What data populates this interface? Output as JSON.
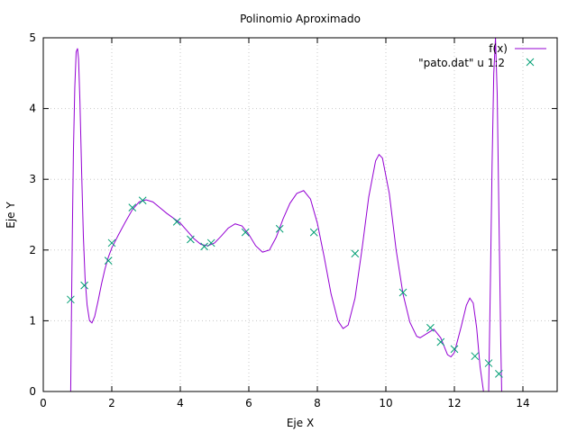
{
  "chart_data": {
    "type": "line",
    "title": "Polinomio Aproximado",
    "xlabel": "Eje X",
    "ylabel": "Eje Y",
    "xlim": [
      0,
      15
    ],
    "ylim": [
      0,
      5
    ],
    "xticks": [
      0,
      2,
      4,
      6,
      8,
      10,
      12,
      14
    ],
    "yticks": [
      0,
      1,
      2,
      3,
      4,
      5
    ],
    "grid": true,
    "legend_position": "top-right",
    "series": [
      {
        "name": "f(x)",
        "kind": "line",
        "color": "#9400d3",
        "points": [
          [
            0.8,
            0.0
          ],
          [
            0.82,
            1.0
          ],
          [
            0.85,
            2.3
          ],
          [
            0.88,
            3.4
          ],
          [
            0.92,
            4.3
          ],
          [
            0.96,
            4.8
          ],
          [
            1.0,
            4.85
          ],
          [
            1.03,
            4.7
          ],
          [
            1.07,
            4.1
          ],
          [
            1.12,
            3.1
          ],
          [
            1.17,
            2.2
          ],
          [
            1.22,
            1.6
          ],
          [
            1.28,
            1.22
          ],
          [
            1.35,
            1.0
          ],
          [
            1.42,
            0.97
          ],
          [
            1.5,
            1.06
          ],
          [
            1.6,
            1.28
          ],
          [
            1.7,
            1.52
          ],
          [
            1.8,
            1.73
          ],
          [
            1.9,
            1.9
          ],
          [
            2.0,
            2.03
          ],
          [
            2.2,
            2.22
          ],
          [
            2.4,
            2.4
          ],
          [
            2.6,
            2.57
          ],
          [
            2.8,
            2.68
          ],
          [
            3.0,
            2.71
          ],
          [
            3.2,
            2.68
          ],
          [
            3.4,
            2.6
          ],
          [
            3.6,
            2.52
          ],
          [
            3.8,
            2.45
          ],
          [
            4.0,
            2.38
          ],
          [
            4.2,
            2.27
          ],
          [
            4.4,
            2.16
          ],
          [
            4.6,
            2.08
          ],
          [
            4.8,
            2.06
          ],
          [
            5.0,
            2.1
          ],
          [
            5.2,
            2.2
          ],
          [
            5.4,
            2.31
          ],
          [
            5.6,
            2.37
          ],
          [
            5.8,
            2.34
          ],
          [
            6.0,
            2.22
          ],
          [
            6.2,
            2.06
          ],
          [
            6.4,
            1.97
          ],
          [
            6.6,
            2.0
          ],
          [
            6.8,
            2.18
          ],
          [
            7.0,
            2.44
          ],
          [
            7.2,
            2.66
          ],
          [
            7.4,
            2.8
          ],
          [
            7.6,
            2.84
          ],
          [
            7.8,
            2.72
          ],
          [
            8.0,
            2.38
          ],
          [
            8.2,
            1.9
          ],
          [
            8.4,
            1.38
          ],
          [
            8.6,
            1.0
          ],
          [
            8.75,
            0.89
          ],
          [
            8.9,
            0.94
          ],
          [
            9.1,
            1.32
          ],
          [
            9.3,
            2.0
          ],
          [
            9.5,
            2.75
          ],
          [
            9.7,
            3.26
          ],
          [
            9.8,
            3.35
          ],
          [
            9.9,
            3.3
          ],
          [
            10.1,
            2.8
          ],
          [
            10.3,
            2.0
          ],
          [
            10.5,
            1.38
          ],
          [
            10.7,
            0.98
          ],
          [
            10.9,
            0.78
          ],
          [
            11.0,
            0.76
          ],
          [
            11.2,
            0.82
          ],
          [
            11.4,
            0.88
          ],
          [
            11.6,
            0.76
          ],
          [
            11.8,
            0.52
          ],
          [
            11.9,
            0.49
          ],
          [
            12.0,
            0.55
          ],
          [
            12.2,
            0.92
          ],
          [
            12.35,
            1.22
          ],
          [
            12.45,
            1.32
          ],
          [
            12.55,
            1.25
          ],
          [
            12.65,
            0.9
          ],
          [
            12.75,
            0.35
          ],
          [
            12.85,
            0.0
          ]
        ],
        "points_2": [
          [
            13.0,
            0.0
          ],
          [
            13.05,
            1.5
          ],
          [
            13.1,
            3.2
          ],
          [
            13.15,
            4.5
          ],
          [
            13.2,
            5.0
          ],
          [
            13.25,
            4.2
          ],
          [
            13.3,
            2.5
          ],
          [
            13.35,
            0.8
          ],
          [
            13.38,
            0.0
          ]
        ]
      },
      {
        "name": "\"pato.dat\" u 1:2",
        "kind": "points",
        "color": "#009e73",
        "points": [
          [
            0.8,
            1.3
          ],
          [
            1.2,
            1.5
          ],
          [
            1.9,
            1.85
          ],
          [
            2.0,
            2.1
          ],
          [
            2.6,
            2.6
          ],
          [
            2.9,
            2.7
          ],
          [
            3.9,
            2.4
          ],
          [
            4.3,
            2.15
          ],
          [
            4.7,
            2.05
          ],
          [
            4.9,
            2.1
          ],
          [
            5.9,
            2.25
          ],
          [
            6.9,
            2.3
          ],
          [
            7.9,
            2.25
          ],
          [
            9.1,
            1.95
          ],
          [
            10.5,
            1.4
          ],
          [
            11.3,
            0.9
          ],
          [
            11.6,
            0.7
          ],
          [
            12.0,
            0.6
          ],
          [
            12.6,
            0.5
          ],
          [
            13.0,
            0.4
          ],
          [
            13.3,
            0.25
          ]
        ]
      }
    ]
  }
}
